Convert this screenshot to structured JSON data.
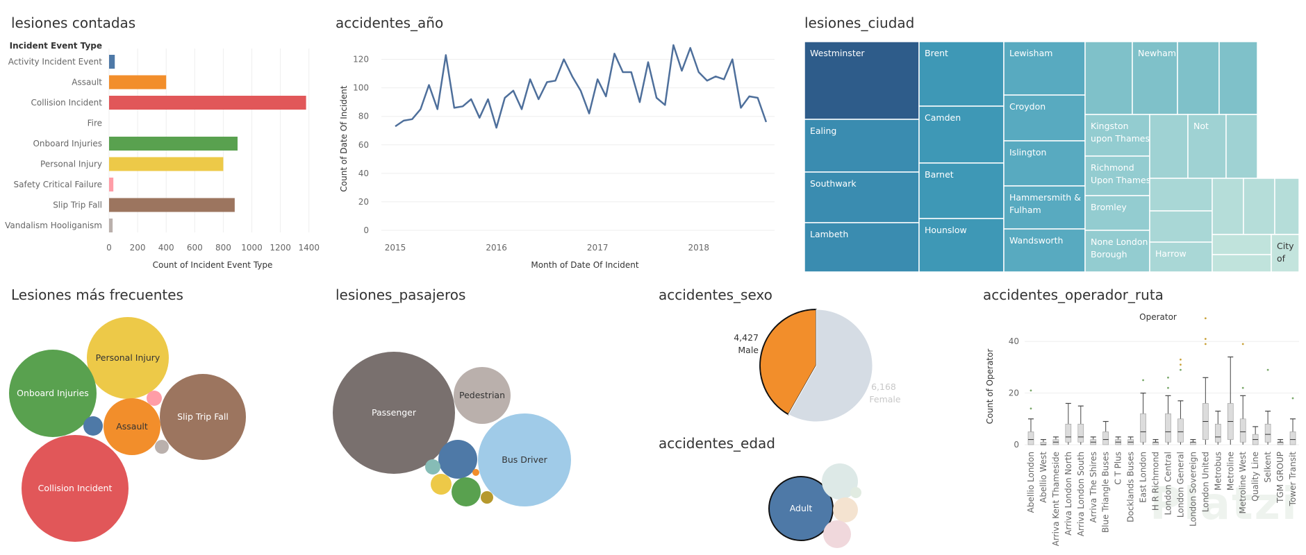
{
  "titles": {
    "bar": "lesiones contadas",
    "line": "accidentes_año",
    "treemap": "lesiones_ciudad",
    "bubble_inj": "Lesiones más frecuentes",
    "bubble_pas": "lesiones_pasajeros",
    "pie_sex": "accidentes_sexo",
    "bubble_age": "accidentes_edad",
    "box": "accidentes_operador_ruta"
  },
  "watermark": "Platzi",
  "chart_data": [
    {
      "id": "bar",
      "type": "bar",
      "orientation": "horizontal",
      "header": "Incident Event Type",
      "xlabel": "Count of Incident Event Type",
      "xlim": [
        0,
        1450
      ],
      "xticks": [
        0,
        200,
        400,
        600,
        800,
        1000,
        1200,
        1400
      ],
      "categories": [
        "Activity Incident Event",
        "Assault",
        "Collision Incident",
        "Fire",
        "Onboard Injuries",
        "Personal Injury",
        "Safety Critical Failure",
        "Slip Trip Fall",
        "Vandalism Hooliganism"
      ],
      "values": [
        40,
        400,
        1380,
        0,
        900,
        800,
        30,
        880,
        25
      ],
      "colors": [
        "#4e79a7",
        "#f28e2b",
        "#e15759",
        "#76b7b2",
        "#59a14f",
        "#edc948",
        "#ff9da7",
        "#9c755f",
        "#bab0ac"
      ]
    },
    {
      "id": "line",
      "type": "line",
      "xlabel": "Month of Date Of Incident",
      "ylabel": "Count of Date Of Incident",
      "ylim": [
        0,
        130
      ],
      "yticks": [
        0,
        20,
        40,
        60,
        80,
        100,
        120
      ],
      "xticks": [
        "2015",
        "2016",
        "2017",
        "2018"
      ],
      "start": "2015-01",
      "values": [
        73,
        77,
        78,
        85,
        102,
        85,
        123,
        86,
        87,
        92,
        79,
        92,
        72,
        93,
        98,
        85,
        106,
        92,
        104,
        105,
        120,
        108,
        98,
        82,
        106,
        94,
        124,
        111,
        111,
        90,
        118,
        93,
        88,
        130,
        112,
        128,
        111,
        105,
        108,
        106,
        120,
        86,
        94,
        93,
        76
      ],
      "color": "#4e6f9b"
    },
    {
      "id": "treemap",
      "type": "treemap",
      "labels": [
        "Westminster",
        "Ealing",
        "Southwark",
        "Lambeth",
        "Brent",
        "Camden",
        "Barnet",
        "Hounslow",
        "Lewisham",
        "Croydon",
        "Islington",
        "Hammersmith & Fulham",
        "Wandsworth",
        "",
        "Newham",
        "",
        "",
        "Kingston upon Thames",
        "Richmond Upon Thames",
        "Bromley",
        "None London Borough",
        "",
        "Not",
        "",
        "",
        "",
        "Harrow",
        "",
        "",
        "",
        "",
        "",
        "",
        "",
        "City of"
      ]
    },
    {
      "id": "bubble_inj",
      "type": "bubble",
      "labels": [
        "Personal Injury",
        "Onboard Injuries",
        "Slip Trip Fall",
        "Assault",
        "Collision Incident",
        "",
        "",
        ""
      ],
      "colors": [
        "#edc948",
        "#59a14f",
        "#9c755f",
        "#f28e2b",
        "#e15759",
        "#4e79a7",
        "#ff9da7",
        "#bab0ac"
      ]
    },
    {
      "id": "bubble_pas",
      "type": "bubble",
      "labels": [
        "Passenger",
        "Pedestrian",
        "Bus Driver",
        "",
        "",
        "",
        "",
        "",
        ""
      ],
      "colors": [
        "#79706e",
        "#bab0ac",
        "#a0cbe8",
        "#4e79a7",
        "#59a14f",
        "#edc948",
        "#86bcb6",
        "#b6992d",
        "#f28e2b"
      ]
    },
    {
      "id": "pie_sex",
      "type": "pie",
      "labels": [
        "Male",
        "Female"
      ],
      "values": [
        4427,
        6168
      ],
      "value_labels": [
        "4,427",
        "6,168"
      ],
      "colors": [
        "#f28e2b",
        "#d5dce4"
      ]
    },
    {
      "id": "bubble_age",
      "type": "bubble",
      "labels": [
        "Adult",
        "",
        "",
        "",
        ""
      ],
      "colors": [
        "#4e79a7",
        "#dde9e7",
        "#f4e3d0",
        "#f0d8dc",
        "#e1ebe1"
      ]
    },
    {
      "id": "box",
      "type": "box",
      "header": "Operator",
      "ylabel": "Count of Operator",
      "ylim": [
        0,
        50
      ],
      "yticks": [
        0,
        20,
        40
      ],
      "categories": [
        "Abellio London",
        "Abellio West",
        "Arriva Kent Thameside",
        "Arriva London North",
        "Arriva London South",
        "Arriva The Shires",
        "Blue Triangle Buses",
        "C T Plus",
        "Docklands Buses",
        "East London",
        "H R Richmond",
        "London Central",
        "London General",
        "London Sovereign",
        "London United",
        "Metrobus",
        "Metroline",
        "Metroline West",
        "Quality Line",
        "Selkent",
        "TGM GROUP",
        "Tower Transit"
      ],
      "medians": [
        2,
        0,
        1,
        3,
        3,
        1,
        2,
        1,
        1,
        5,
        1,
        5,
        5,
        1,
        9,
        3,
        9,
        5,
        2,
        4,
        1,
        2
      ],
      "q1": [
        0,
        0,
        0,
        1,
        1,
        0,
        0,
        0,
        0,
        1,
        0,
        1,
        1,
        0,
        2,
        1,
        2,
        1,
        0,
        1,
        0,
        0
      ],
      "q3": [
        5,
        1,
        2,
        8,
        8,
        2,
        5,
        2,
        2,
        12,
        1,
        12,
        10,
        1,
        16,
        8,
        16,
        10,
        4,
        8,
        1,
        5
      ],
      "max": [
        10,
        2,
        3,
        16,
        15,
        3,
        9,
        3,
        3,
        20,
        2,
        19,
        17,
        2,
        26,
        13,
        34,
        19,
        7,
        13,
        2,
        10
      ],
      "outliers": [
        [
          14,
          21
        ],
        [],
        [],
        [],
        [],
        [],
        [],
        [],
        [],
        [
          25
        ],
        [],
        [
          22,
          26
        ],
        [
          29,
          31,
          33
        ],
        [],
        [
          39,
          41,
          49
        ],
        [],
        [],
        [
          22,
          39
        ],
        [],
        [
          29
        ],
        [],
        [
          18
        ]
      ]
    }
  ]
}
